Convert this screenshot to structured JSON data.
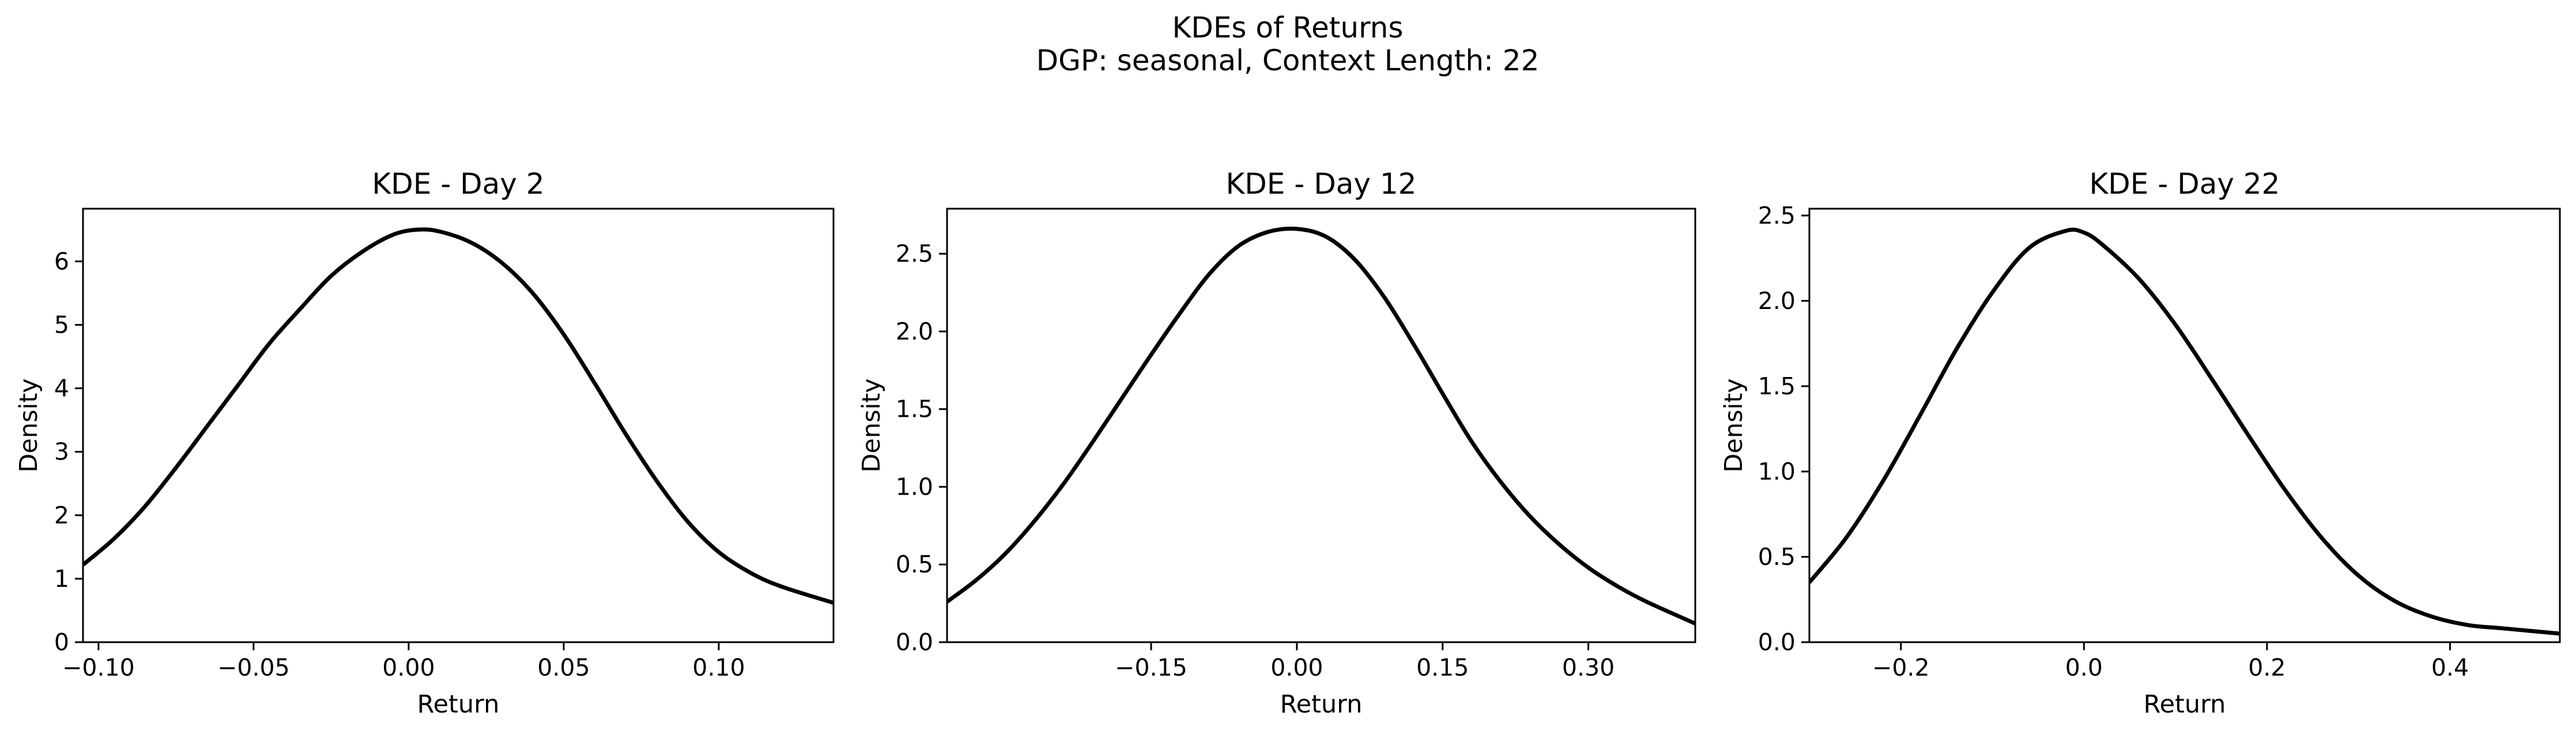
{
  "figure": {
    "title_line1": "KDEs of Returns",
    "title_line2": "DGP: seasonal, Context Length: 22"
  },
  "chart_data": [
    {
      "type": "line",
      "title": "KDE - Day 2",
      "xlabel": "Return",
      "ylabel": "Density",
      "xlim": [
        -0.105,
        0.137
      ],
      "ylim": [
        0,
        6.83
      ],
      "xticks": [
        -0.1,
        -0.05,
        0.0,
        0.05,
        0.1
      ],
      "xtick_labels": [
        "−0.10",
        "−0.05",
        "0.00",
        "0.05",
        "0.10"
      ],
      "yticks": [
        0,
        1,
        2,
        3,
        4,
        5,
        6
      ],
      "ytick_labels": [
        "0",
        "1",
        "2",
        "3",
        "4",
        "5",
        "6"
      ],
      "grid": false,
      "line_color": "#000000",
      "series": [
        {
          "x": [
            -0.105,
            -0.095,
            -0.085,
            -0.075,
            -0.065,
            -0.055,
            -0.045,
            -0.035,
            -0.025,
            -0.015,
            -0.005,
            0.003,
            0.01,
            0.02,
            0.03,
            0.04,
            0.05,
            0.06,
            0.07,
            0.08,
            0.09,
            0.1,
            0.11,
            0.12,
            0.137
          ],
          "y": [
            1.22,
            1.63,
            2.14,
            2.75,
            3.4,
            4.05,
            4.7,
            5.25,
            5.77,
            6.15,
            6.42,
            6.5,
            6.47,
            6.3,
            5.98,
            5.5,
            4.85,
            4.08,
            3.28,
            2.54,
            1.9,
            1.42,
            1.1,
            0.88,
            0.62
          ]
        }
      ]
    },
    {
      "type": "line",
      "title": "KDE - Day 12",
      "xlabel": "Return",
      "ylabel": "Density",
      "xlim": [
        -0.36,
        0.41
      ],
      "ylim": [
        0,
        2.79
      ],
      "xticks": [
        -0.15,
        0.0,
        0.15,
        0.3
      ],
      "xtick_labels": [
        "−0.15",
        "0.00",
        "0.15",
        "0.30"
      ],
      "yticks": [
        0.0,
        0.5,
        1.0,
        1.5,
        2.0,
        2.5
      ],
      "ytick_labels": [
        "0.0",
        "0.5",
        "1.0",
        "1.5",
        "2.0",
        "2.5"
      ],
      "grid": false,
      "line_color": "#000000",
      "series": [
        {
          "x": [
            -0.36,
            -0.33,
            -0.3,
            -0.27,
            -0.24,
            -0.21,
            -0.18,
            -0.15,
            -0.12,
            -0.09,
            -0.06,
            -0.03,
            0.0,
            0.03,
            0.06,
            0.09,
            0.12,
            0.15,
            0.18,
            0.21,
            0.24,
            0.27,
            0.3,
            0.33,
            0.36,
            0.41
          ],
          "y": [
            0.26,
            0.4,
            0.57,
            0.78,
            1.02,
            1.29,
            1.57,
            1.85,
            2.12,
            2.37,
            2.55,
            2.64,
            2.66,
            2.61,
            2.46,
            2.22,
            1.92,
            1.6,
            1.29,
            1.03,
            0.81,
            0.63,
            0.48,
            0.36,
            0.26,
            0.12
          ]
        }
      ]
    },
    {
      "type": "line",
      "title": "KDE - Day 22",
      "xlabel": "Return",
      "ylabel": "Density",
      "xlim": [
        -0.3,
        0.52
      ],
      "ylim": [
        0,
        2.54
      ],
      "xticks": [
        -0.2,
        0.0,
        0.2,
        0.4
      ],
      "xtick_labels": [
        "−0.2",
        "0.0",
        "0.2",
        "0.4"
      ],
      "yticks": [
        0.0,
        0.5,
        1.0,
        1.5,
        2.0,
        2.5
      ],
      "ytick_labels": [
        "0.0",
        "0.5",
        "1.0",
        "1.5",
        "2.0",
        "2.5"
      ],
      "grid": false,
      "line_color": "#000000",
      "series": [
        {
          "x": [
            -0.3,
            -0.26,
            -0.22,
            -0.18,
            -0.14,
            -0.1,
            -0.06,
            -0.02,
            0.0,
            0.02,
            0.06,
            0.1,
            0.14,
            0.18,
            0.22,
            0.26,
            0.3,
            0.34,
            0.38,
            0.42,
            0.46,
            0.52
          ],
          "y": [
            0.35,
            0.61,
            0.94,
            1.32,
            1.71,
            2.05,
            2.31,
            2.41,
            2.4,
            2.33,
            2.13,
            1.86,
            1.54,
            1.21,
            0.89,
            0.61,
            0.39,
            0.24,
            0.15,
            0.1,
            0.08,
            0.05
          ]
        }
      ]
    }
  ]
}
